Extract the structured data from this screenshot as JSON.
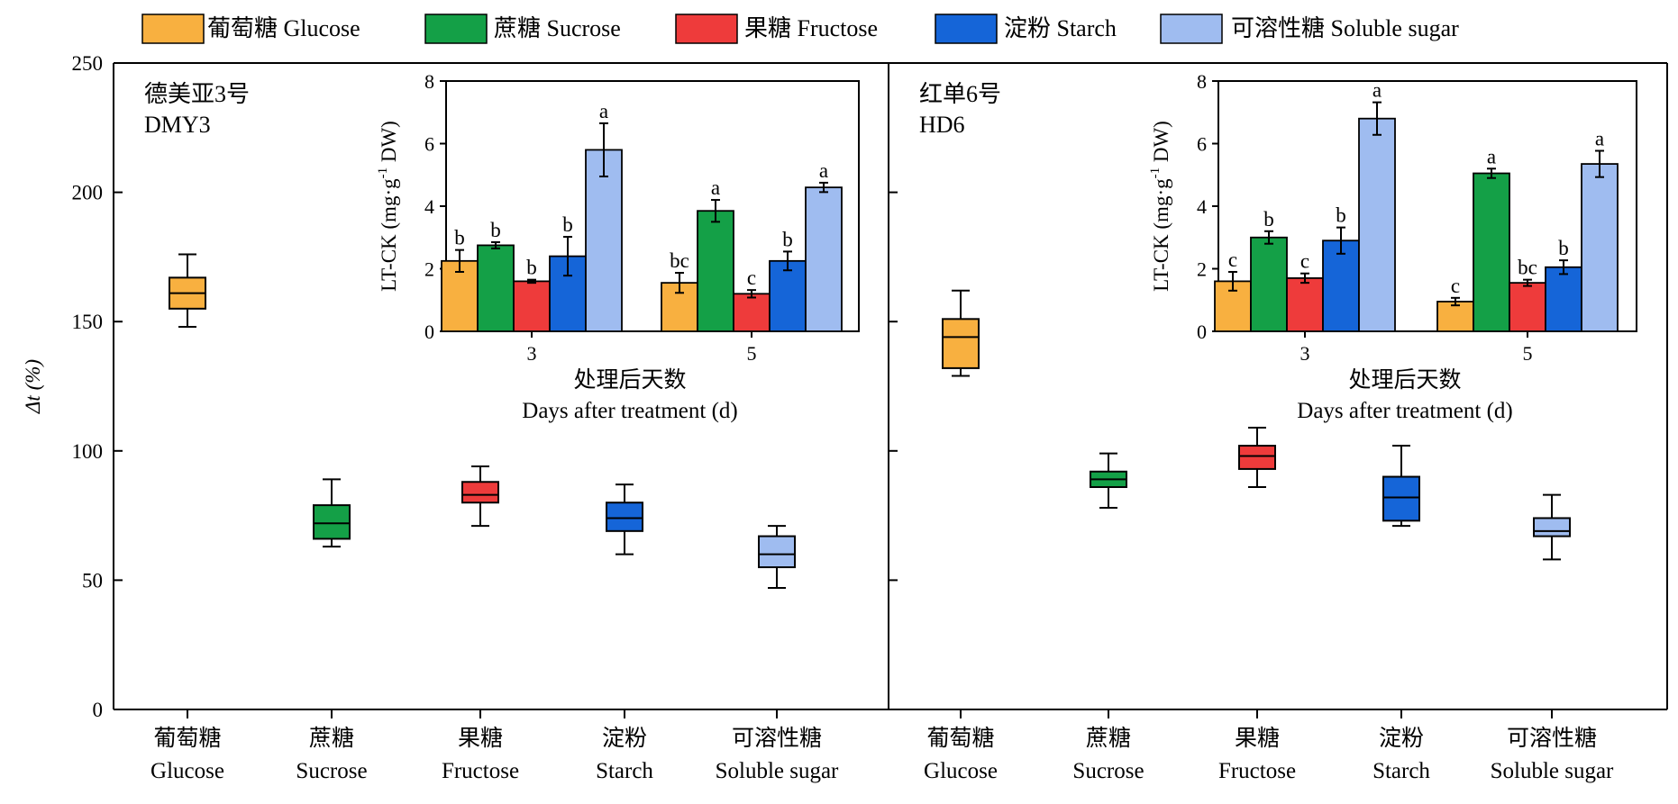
{
  "colors": {
    "Glucose": "#f8b040",
    "Sucrose": "#14a047",
    "Fructose": "#ee3b3b",
    "Starch": "#1565d8",
    "Soluble": "#9fbcf0"
  },
  "legend": [
    {
      "key": "Glucose",
      "label": "葡萄糖 Glucose"
    },
    {
      "key": "Sucrose",
      "label": "蔗糖 Sucrose"
    },
    {
      "key": "Fructose",
      "label": "果糖 Fructose"
    },
    {
      "key": "Starch",
      "label": "淀粉 Starch"
    },
    {
      "key": "Soluble",
      "label": "可溶性糖 Soluble sugar"
    }
  ],
  "y_axis": {
    "label": "Δt (%)",
    "ticks": [
      "0",
      "50",
      "100",
      "150",
      "200",
      "250"
    ]
  },
  "categories": [
    {
      "zh": "葡萄糖",
      "en": "Glucose"
    },
    {
      "zh": "蔗糖",
      "en": "Sucrose"
    },
    {
      "zh": "果糖",
      "en": "Fructose"
    },
    {
      "zh": "淀粉",
      "en": "Starch"
    },
    {
      "zh": "可溶性糖",
      "en": "Soluble sugar"
    }
  ],
  "panels": [
    {
      "cultivar_zh": "德美亚3号",
      "cultivar_en": "DMY3"
    },
    {
      "cultivar_zh": "红单6号",
      "cultivar_en": "HD6"
    }
  ],
  "inset": {
    "ylabel_main": "LT-CK (mg·g",
    "ylabel_sup": "-1",
    "ylabel_tail": " DW)",
    "yticks": [
      "0",
      "2",
      "4",
      "6",
      "8"
    ],
    "xticks": [
      "3",
      "5"
    ],
    "xlabel_zh": "处理后天数",
    "xlabel_en": "Days after treatment (d)"
  },
  "chart_data": [
    {
      "type": "box",
      "panel": "DMY3",
      "ylabel": "Δt (%)",
      "ylim": [
        0,
        250
      ],
      "categories": [
        "Glucose",
        "Sucrose",
        "Fructose",
        "Starch",
        "Soluble sugar"
      ],
      "boxes": [
        {
          "min": 148,
          "q1": 155,
          "median": 161,
          "q3": 167,
          "max": 176
        },
        {
          "min": 63,
          "q1": 66,
          "median": 72,
          "q3": 79,
          "max": 89
        },
        {
          "min": 71,
          "q1": 80,
          "median": 83,
          "q3": 88,
          "max": 94
        },
        {
          "min": 60,
          "q1": 69,
          "median": 74,
          "q3": 80,
          "max": 87
        },
        {
          "min": 47,
          "q1": 55,
          "median": 60,
          "q3": 67,
          "max": 71
        }
      ]
    },
    {
      "type": "box",
      "panel": "HD6",
      "ylabel": "Δt (%)",
      "ylim": [
        0,
        250
      ],
      "categories": [
        "Glucose",
        "Sucrose",
        "Fructose",
        "Starch",
        "Soluble sugar"
      ],
      "boxes": [
        {
          "min": 129,
          "q1": 132,
          "median": 144,
          "q3": 151,
          "max": 162
        },
        {
          "min": 78,
          "q1": 86,
          "median": 89,
          "q3": 92,
          "max": 99
        },
        {
          "min": 86,
          "q1": 93,
          "median": 98,
          "q3": 102,
          "max": 109
        },
        {
          "min": 71,
          "q1": 73,
          "median": 82,
          "q3": 90,
          "max": 102
        },
        {
          "min": 58,
          "q1": 67,
          "median": 69,
          "q3": 74,
          "max": 83
        }
      ]
    },
    {
      "type": "bar",
      "panel": "DMY3 inset",
      "xlabel": "Days after treatment (d)",
      "ylabel": "LT-CK (mg·g-1 DW)",
      "ylim": [
        0,
        8
      ],
      "categories": [
        "3",
        "5"
      ],
      "series": [
        {
          "name": "Glucose",
          "values": [
            2.25,
            1.55
          ],
          "errors": [
            0.35,
            0.32
          ],
          "letters": [
            "b",
            "bc"
          ]
        },
        {
          "name": "Sucrose",
          "values": [
            2.75,
            3.85
          ],
          "errors": [
            0.1,
            0.35
          ],
          "letters": [
            "b",
            "a"
          ]
        },
        {
          "name": "Fructose",
          "values": [
            1.6,
            1.2
          ],
          "errors": [
            0.05,
            0.12
          ],
          "letters": [
            "b",
            "c"
          ]
        },
        {
          "name": "Starch",
          "values": [
            2.4,
            2.25
          ],
          "errors": [
            0.62,
            0.3
          ],
          "letters": [
            "b",
            "b"
          ]
        },
        {
          "name": "Soluble sugar",
          "values": [
            5.8,
            4.6
          ],
          "errors": [
            0.85,
            0.15
          ],
          "letters": [
            "a",
            "a"
          ]
        }
      ]
    },
    {
      "type": "bar",
      "panel": "HD6 inset",
      "xlabel": "Days after treatment (d)",
      "ylabel": "LT-CK (mg·g-1 DW)",
      "ylim": [
        0,
        8
      ],
      "categories": [
        "3",
        "5"
      ],
      "series": [
        {
          "name": "Glucose",
          "values": [
            1.6,
            0.95
          ],
          "errors": [
            0.3,
            0.12
          ],
          "letters": [
            "c",
            "c"
          ]
        },
        {
          "name": "Sucrose",
          "values": [
            3.0,
            5.05
          ],
          "errors": [
            0.2,
            0.15
          ],
          "letters": [
            "b",
            "a"
          ]
        },
        {
          "name": "Fructose",
          "values": [
            1.7,
            1.55
          ],
          "errors": [
            0.15,
            0.1
          ],
          "letters": [
            "c",
            "bc"
          ]
        },
        {
          "name": "Starch",
          "values": [
            2.9,
            2.05
          ],
          "errors": [
            0.42,
            0.22
          ],
          "letters": [
            "b",
            "b"
          ]
        },
        {
          "name": "Soluble sugar",
          "values": [
            6.8,
            5.35
          ],
          "errors": [
            0.52,
            0.42
          ],
          "letters": [
            "a",
            "a"
          ]
        }
      ]
    }
  ]
}
